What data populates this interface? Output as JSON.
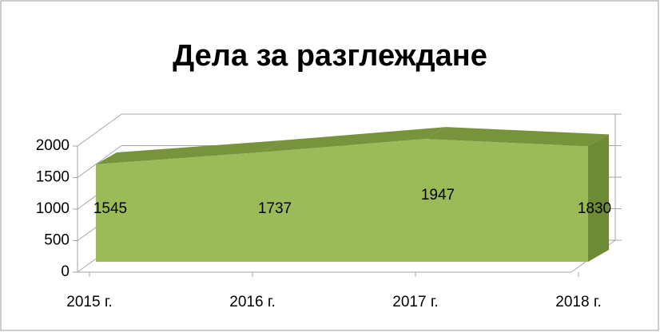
{
  "chart_data": {
    "type": "area3d",
    "title": "Дела за разглеждане",
    "categories": [
      "2015 г.",
      "2016 г.",
      "2017 г.",
      "2018 г."
    ],
    "values": [
      1545,
      1737,
      1947,
      1830
    ],
    "color": "#9bbb59",
    "ylim": [
      0,
      2000
    ],
    "yticks": [
      0,
      500,
      1000,
      1500,
      2000
    ],
    "grid": true
  }
}
